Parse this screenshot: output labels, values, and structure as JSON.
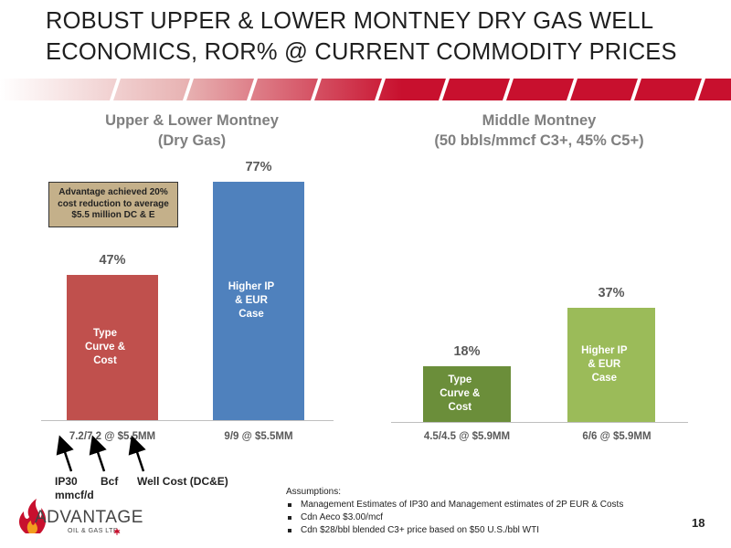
{
  "title": {
    "line1": "ROBUST UPPER & LOWER MONTNEY DRY GAS WELL",
    "line2": "ECONOMICS, ROR% @ CURRENT COMMODITY PRICES"
  },
  "colors": {
    "banner_red": "#c8102e",
    "bar_red": "#c0504d",
    "bar_blue": "#4f81bd",
    "bar_dark_green": "#6b8e3a",
    "bar_light_green": "#9bbb59",
    "callout_tan": "#c4b08a"
  },
  "left_panel": {
    "subtitle_line1": "Upper & Lower Montney",
    "subtitle_line2": "(Dry Gas)",
    "callout": "Advantage achieved 20% cost reduction to average $5.5 million DC & E"
  },
  "right_panel": {
    "subtitle_line1": "Middle Montney",
    "subtitle_line2": "(50 bbls/mmcf C3+, 45% C5+)"
  },
  "chart_data": [
    {
      "type": "bar",
      "title": "Upper & Lower Montney (Dry Gas)",
      "unit": "ROR%",
      "ylim": [
        0,
        90
      ],
      "categories": [
        "7.2/7.2 @ $5.5MM",
        "9/9 @ $5.5MM"
      ],
      "values": [
        47,
        77
      ],
      "value_labels": [
        "47%",
        "77%"
      ],
      "bar_labels": [
        [
          "Type",
          "Curve &",
          "Cost"
        ],
        [
          "Higher IP",
          "& EUR",
          "Case"
        ]
      ]
    },
    {
      "type": "bar",
      "title": "Middle Montney (50 bbls/mmcf C3+, 45% C5+)",
      "unit": "ROR%",
      "ylim": [
        0,
        90
      ],
      "categories": [
        "4.5/4.5 @ $5.9MM",
        "6/6 @ $5.9MM"
      ],
      "values": [
        18,
        37
      ],
      "value_labels": [
        "18%",
        "37%"
      ],
      "bar_labels": [
        [
          "Type",
          "Curve &",
          "Cost"
        ],
        [
          "Higher IP",
          "& EUR",
          "Case"
        ]
      ]
    }
  ],
  "annotations": {
    "ip30_line1": "IP30",
    "ip30_line2": "mmcf/d",
    "bcf": "Bcf",
    "well_cost": "Well Cost (DC&E)"
  },
  "assumptions": {
    "heading": "Assumptions:",
    "items": [
      "Management Estimates of IP30 and Management estimates of 2P EUR & Costs",
      "Cdn Aeco $3.00/mcf",
      "Cdn $28/bbl blended C3+ price based on $50 U.S./bbl WTI"
    ]
  },
  "logo": {
    "name": "ADVANTAGE",
    "tagline": "OIL & GAS LTD."
  },
  "page_number": "18"
}
